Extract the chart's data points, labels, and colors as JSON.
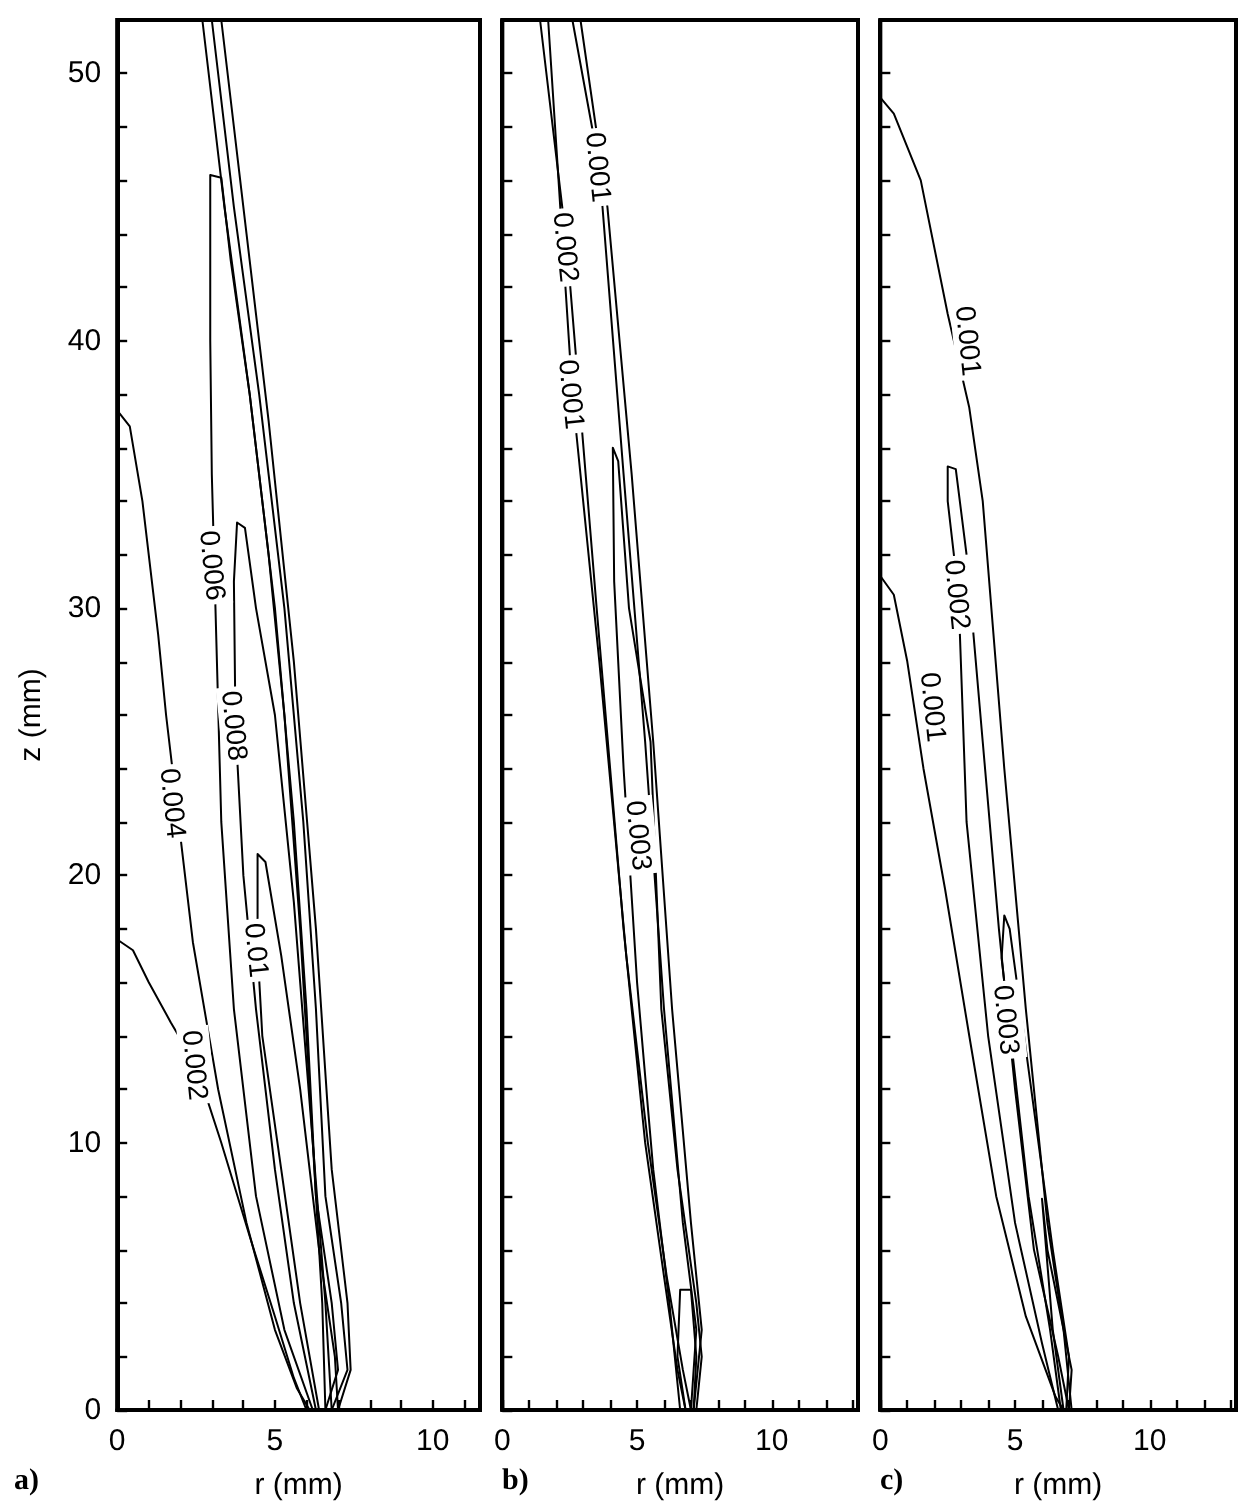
{
  "chart_data": [
    {
      "type": "line",
      "title": "a)",
      "xlabel": "r (mm)",
      "ylabel": "z (mm)",
      "marker": "none",
      "line_style": "solid",
      "xlim": [
        0,
        11.5
      ],
      "ylim": [
        0,
        52
      ],
      "xticks": [
        0,
        {
          "value": 1,
          "label": null
        },
        {
          "value": 2,
          "label": null
        },
        {
          "value": 3,
          "label": null
        },
        {
          "value": 4,
          "label": null
        },
        5,
        {
          "value": 6,
          "label": null
        },
        {
          "value": 7,
          "label": null
        },
        {
          "value": 8,
          "label": null
        },
        {
          "value": 9,
          "label": null
        },
        10,
        {
          "value": 11,
          "label": null
        }
      ],
      "yticks": [
        0,
        {
          "value": 2,
          "label": null
        },
        {
          "value": 4,
          "label": null
        },
        {
          "value": 6,
          "label": null
        },
        {
          "value": 8,
          "label": null
        },
        10,
        {
          "value": 12,
          "label": null
        },
        {
          "value": 14,
          "label": null
        },
        {
          "value": 16,
          "label": null
        },
        {
          "value": 18,
          "label": null
        },
        20,
        {
          "value": 22,
          "label": null
        },
        {
          "value": 24,
          "label": null
        },
        {
          "value": 26,
          "label": null
        },
        {
          "value": 28,
          "label": null
        },
        30,
        {
          "value": 32,
          "label": null
        },
        {
          "value": 34,
          "label": null
        },
        {
          "value": 36,
          "label": null
        },
        {
          "value": 38,
          "label": null
        },
        40,
        {
          "value": 42,
          "label": null
        },
        {
          "value": 44,
          "label": null
        },
        {
          "value": 46,
          "label": null
        },
        {
          "value": 48,
          "label": null
        },
        50
      ],
      "series": [
        {
          "color": "#000000",
          "x": [
            0,
            0.5,
            1,
            1.7,
            2.5,
            3.3,
            4.2,
            5,
            5.6,
            6
          ],
          "values": [
            17.6,
            17.2,
            16,
            14.5,
            12.9,
            10,
            6.5,
            3.5,
            1.2,
            0
          ]
        },
        {
          "color": "#000000",
          "x": [
            0,
            0.4,
            0.8,
            1.3,
            1.55,
            2.4,
            3.2,
            4.1,
            5,
            5.7,
            6.1
          ],
          "values": [
            37.4,
            36.8,
            34,
            29,
            26,
            17.5,
            12,
            7,
            3,
            0.8,
            0
          ]
        },
        {
          "color": "#000000",
          "x": [
            6.2,
            5.3,
            4.4,
            3.7,
            3.3,
            3.0,
            2.95,
            2.95,
            3.3,
            3.6,
            4.2,
            4.8,
            5.3,
            5.8,
            6.2,
            6.5,
            6.6
          ],
          "values": [
            0,
            3,
            8,
            15,
            22,
            35,
            40,
            46.2,
            46.1,
            43,
            38,
            32,
            26,
            18,
            10,
            4,
            0
          ]
        },
        {
          "color": "#000000",
          "x": [
            6.3,
            5.6,
            5,
            4.4,
            4,
            3.75,
            3.7,
            3.8,
            4.05,
            4.4,
            5,
            5.6,
            6.2,
            6.6,
            6.8
          ],
          "values": [
            0,
            4,
            9,
            15,
            20,
            25.6,
            31,
            33.2,
            33,
            30,
            26,
            19,
            10,
            4,
            0
          ]
        },
        {
          "color": "#000000",
          "x": [
            6.4,
            5.8,
            5.2,
            4.6,
            4.45,
            4.45,
            4.7,
            5.2,
            5.8,
            6.4,
            6.9,
            7
          ],
          "values": [
            0,
            4,
            9,
            14,
            17.2,
            20.8,
            20.5,
            17,
            12,
            6,
            2,
            0
          ]
        },
        {
          "color": "#000000",
          "x": [
            2.7,
            3.4,
            4.2,
            5,
            5.6,
            6,
            6.3,
            6.8,
            7,
            6.6
          ],
          "values": [
            52,
            45,
            38,
            30,
            22,
            15,
            8,
            4,
            1.5,
            0
          ]
        },
        {
          "color": "#000000",
          "x": [
            3,
            3.7,
            4.5,
            5.3,
            5.9,
            6.3,
            6.6,
            7.1,
            7.3,
            6.8
          ],
          "values": [
            52,
            45,
            38,
            30,
            22,
            15,
            8,
            4,
            1.5,
            0
          ]
        },
        {
          "color": "#000000",
          "x": [
            3.3,
            4.1,
            4.8,
            5.6,
            6.3,
            6.8,
            7.3,
            7.4,
            7
          ],
          "values": [
            52,
            44,
            37,
            28,
            18,
            9,
            4,
            1.5,
            0
          ]
        }
      ],
      "annotations": [
        {
          "text": "0.002",
          "x": 2.5,
          "y": 12.9
        },
        {
          "text": "0.004",
          "x": 1.8,
          "y": 22.7
        },
        {
          "text": "0.006",
          "x": 3.05,
          "y": 31.6
        },
        {
          "text": "0.008",
          "x": 3.75,
          "y": 25.6
        },
        {
          "text": "0.01",
          "x": 4.45,
          "y": 17.2
        }
      ]
    },
    {
      "type": "line",
      "title": "b)",
      "xlabel": "r (mm)",
      "tick_labels": "x",
      "marker": "none",
      "line_style": "solid",
      "xlim": [
        0,
        13.2
      ],
      "ylim": [
        0,
        52
      ],
      "xticks": [
        0,
        {
          "value": 1,
          "label": null
        },
        {
          "value": 2,
          "label": null
        },
        {
          "value": 3,
          "label": null
        },
        {
          "value": 4,
          "label": null
        },
        5,
        {
          "value": 6,
          "label": null
        },
        {
          "value": 7,
          "label": null
        },
        {
          "value": 8,
          "label": null
        },
        {
          "value": 9,
          "label": null
        },
        10,
        {
          "value": 11,
          "label": null
        },
        {
          "value": 12,
          "label": null
        },
        {
          "value": 13,
          "label": null
        }
      ],
      "yticks": [
        0,
        {
          "value": 2,
          "label": null
        },
        {
          "value": 4,
          "label": null
        },
        {
          "value": 6,
          "label": null
        },
        {
          "value": 8,
          "label": null
        },
        10,
        {
          "value": 12,
          "label": null
        },
        {
          "value": 14,
          "label": null
        },
        {
          "value": 16,
          "label": null
        },
        {
          "value": 18,
          "label": null
        },
        20,
        {
          "value": 22,
          "label": null
        },
        {
          "value": 24,
          "label": null
        },
        {
          "value": 26,
          "label": null
        },
        {
          "value": 28,
          "label": null
        },
        30,
        {
          "value": 32,
          "label": null
        },
        {
          "value": 34,
          "label": null
        },
        {
          "value": 36,
          "label": null
        },
        {
          "value": 38,
          "label": null
        },
        40,
        {
          "value": 42,
          "label": null
        },
        {
          "value": 44,
          "label": null
        },
        {
          "value": 46,
          "label": null
        },
        {
          "value": 48,
          "label": null
        },
        50
      ],
      "series": [
        {
          "color": "#000000",
          "x": [
            1.4,
            2.4,
            3.5,
            4.5,
            5.3,
            6,
            6.5,
            6.8
          ],
          "values": [
            52,
            43.5,
            30,
            18,
            10,
            5,
            1.5,
            0
          ]
        },
        {
          "color": "#000000",
          "x": [
            1.7,
            2.6,
            3.6,
            4.6,
            5.4,
            6.1,
            6.7,
            7
          ],
          "values": [
            52,
            38,
            28,
            17,
            10,
            5,
            1.5,
            0
          ]
        },
        {
          "color": "#000000",
          "x": [
            2.6,
            3.6,
            4.5,
            5.3,
            6,
            6.7,
            7.2,
            7
          ],
          "values": [
            52,
            46.5,
            35,
            25,
            15,
            7,
            3,
            0
          ]
        },
        {
          "color": "#000000",
          "x": [
            2.9,
            3.9,
            4.8,
            5.6,
            6.3,
            7,
            7.4,
            7.1
          ],
          "values": [
            52,
            45,
            35,
            25,
            15,
            7,
            3,
            0
          ]
        },
        {
          "color": "#000000",
          "x": [
            6.6,
            6.2,
            5.6,
            5,
            4.5,
            4.15,
            4.1,
            4.3,
            4.7,
            5.5,
            5.9,
            6.5,
            7.2,
            7.4,
            7.2
          ],
          "values": [
            0,
            4,
            9,
            16,
            24,
            31,
            36,
            35.5,
            30,
            25,
            15,
            9,
            4,
            2,
            0
          ]
        },
        {
          "color": "#000000",
          "x": [
            6.8,
            6.5,
            6.6,
            7,
            7.2,
            7.1
          ],
          "values": [
            0,
            2,
            4.5,
            4.5,
            2,
            0
          ]
        }
      ],
      "annotations": [
        {
          "text": "0.001",
          "x": 3.6,
          "y": 46.5
        },
        {
          "text": "0.002",
          "x": 2.4,
          "y": 43.5
        },
        {
          "text": "0.001",
          "x": 2.6,
          "y": 38
        },
        {
          "text": "0.003",
          "x": 5.1,
          "y": 21.5
        }
      ]
    },
    {
      "type": "line",
      "title": "c)",
      "xlabel": "r (mm)",
      "tick_labels": "x",
      "marker": "none",
      "line_style": "solid",
      "xlim": [
        0,
        13.2
      ],
      "ylim": [
        0,
        52
      ],
      "xticks": [
        0,
        {
          "value": 1,
          "label": null
        },
        {
          "value": 2,
          "label": null
        },
        {
          "value": 3,
          "label": null
        },
        {
          "value": 4,
          "label": null
        },
        5,
        {
          "value": 6,
          "label": null
        },
        {
          "value": 7,
          "label": null
        },
        {
          "value": 8,
          "label": null
        },
        {
          "value": 9,
          "label": null
        },
        10,
        {
          "value": 11,
          "label": null
        },
        {
          "value": 12,
          "label": null
        },
        {
          "value": 13,
          "label": null
        }
      ],
      "yticks": [
        0,
        {
          "value": 2,
          "label": null
        },
        {
          "value": 4,
          "label": null
        },
        {
          "value": 6,
          "label": null
        },
        {
          "value": 8,
          "label": null
        },
        10,
        {
          "value": 12,
          "label": null
        },
        {
          "value": 14,
          "label": null
        },
        {
          "value": 16,
          "label": null
        },
        {
          "value": 18,
          "label": null
        },
        20,
        {
          "value": 22,
          "label": null
        },
        {
          "value": 24,
          "label": null
        },
        {
          "value": 26,
          "label": null
        },
        {
          "value": 28,
          "label": null
        },
        30,
        {
          "value": 32,
          "label": null
        },
        {
          "value": 34,
          "label": null
        },
        {
          "value": 36,
          "label": null
        },
        {
          "value": 38,
          "label": null
        },
        40,
        {
          "value": 42,
          "label": null
        },
        {
          "value": 44,
          "label": null
        },
        {
          "value": 46,
          "label": null
        },
        {
          "value": 48,
          "label": null
        },
        50
      ],
      "series": [
        {
          "color": "#000000",
          "x": [
            0,
            0.5,
            1.5,
            2.5,
            3.3,
            3.8,
            4.6,
            5.4,
            6.2,
            6.8,
            7.1
          ],
          "values": [
            49.1,
            48.5,
            46,
            41,
            37.5,
            34,
            24,
            15,
            7,
            3,
            0
          ]
        },
        {
          "color": "#000000",
          "x": [
            0,
            0.5,
            1,
            1.6,
            2.4,
            3.3,
            4.3,
            5.4,
            6.5,
            6.8
          ],
          "values": [
            31.2,
            30.5,
            28,
            24,
            19.5,
            14,
            8,
            3.5,
            0.5,
            0
          ]
        },
        {
          "color": "#000000",
          "x": [
            6.6,
            6,
            5,
            4,
            3.2,
            2.9,
            2.5,
            2.5,
            2.8,
            3.2,
            3.8,
            4.4,
            5,
            5.7,
            6.6,
            7
          ],
          "values": [
            0,
            2.5,
            7,
            14,
            22,
            30.5,
            34,
            35.3,
            35.2,
            32,
            25,
            18,
            12,
            6,
            2,
            0
          ]
        },
        {
          "color": "#000000",
          "x": [
            6.7,
            6.3,
            5.5,
            5,
            4.5,
            4.6,
            4.8,
            5.6,
            6.4,
            7,
            6.9
          ],
          "values": [
            0,
            3,
            8,
            12.5,
            16.9,
            18.5,
            18,
            12,
            6,
            2,
            0
          ]
        },
        {
          "color": "#000000",
          "x": [
            6.8,
            6.4,
            6,
            6.2,
            6.8,
            7.1,
            7
          ],
          "values": [
            0,
            3,
            7.9,
            6,
            3,
            1.5,
            0
          ]
        }
      ],
      "annotations": [
        {
          "text": "0.001",
          "x": 3.3,
          "y": 40
        },
        {
          "text": "0.002",
          "x": 2.9,
          "y": 30.5
        },
        {
          "text": "0.001",
          "x": 2,
          "y": 26.3
        },
        {
          "text": "0.003",
          "x": 4.72,
          "y": 14.6
        }
      ]
    }
  ]
}
